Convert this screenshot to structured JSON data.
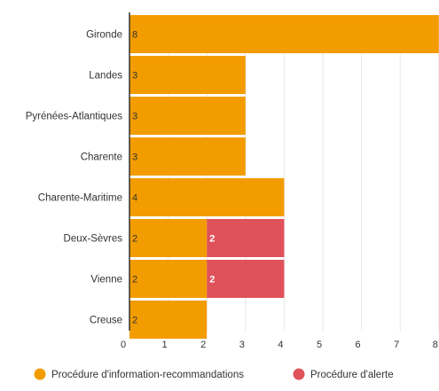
{
  "chart_data": {
    "type": "bar",
    "orientation": "horizontal",
    "stacked": true,
    "categories": [
      "Gironde",
      "Landes",
      "Pyrénées-Atlantiques",
      "Charente",
      "Charente-Maritime",
      "Deux-Sèvres",
      "Vienne",
      "Creuse"
    ],
    "series": [
      {
        "name": "Procédure d'information-recommandations",
        "color": "#f39c00",
        "label_color": "#333333",
        "values": [
          8,
          3,
          3,
          3,
          4,
          2,
          2,
          2
        ]
      },
      {
        "name": "Procédure d'alerte",
        "color": "#e0525a",
        "label_color": "#ffffff",
        "values": [
          0,
          0,
          0,
          0,
          0,
          2,
          2,
          0
        ]
      }
    ],
    "xlim": [
      0,
      8
    ],
    "xticks": [
      0,
      1,
      2,
      3,
      4,
      5,
      6,
      7,
      8
    ],
    "grid": true,
    "legend_position": "bottom"
  }
}
